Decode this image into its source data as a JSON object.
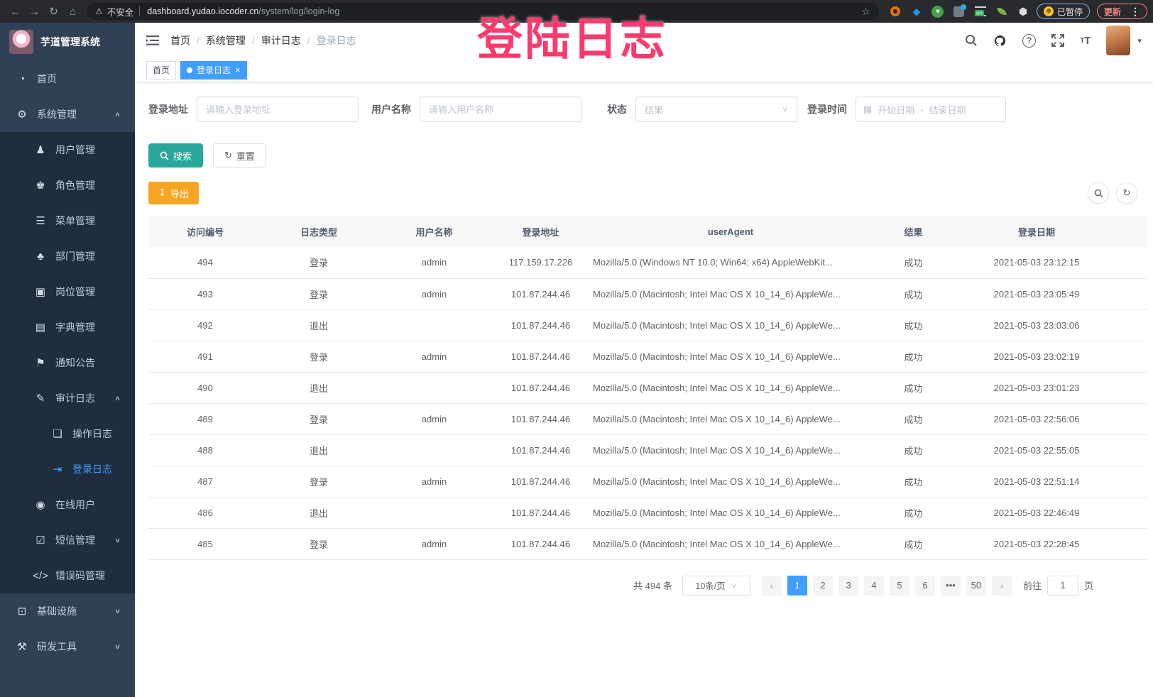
{
  "browser": {
    "security_label": "不安全",
    "url_host": "dashboard.yudao.iocoder.cn",
    "url_path": "/system/log/login-log",
    "paused_badge_label": "已暂停",
    "update_button_label": "更新"
  },
  "overlay_title": "登陆日志",
  "sidebar": {
    "app_title": "芋道管理系统",
    "items": [
      {
        "key": "home",
        "label": "首页",
        "icon": "dashboard-icon",
        "level": 1
      },
      {
        "key": "system",
        "label": "系统管理",
        "icon": "gear-icon",
        "level": 1,
        "arrow": "up"
      },
      {
        "key": "users",
        "label": "用户管理",
        "icon": "user-icon",
        "level": 2
      },
      {
        "key": "roles",
        "label": "角色管理",
        "icon": "role-icon",
        "level": 2
      },
      {
        "key": "menus",
        "label": "菜单管理",
        "icon": "menu-list-icon",
        "level": 2
      },
      {
        "key": "departments",
        "label": "部门管理",
        "icon": "org-tree-icon",
        "level": 2
      },
      {
        "key": "posts",
        "label": "岗位管理",
        "icon": "badge-icon",
        "level": 2
      },
      {
        "key": "dictionaries",
        "label": "字典管理",
        "icon": "dictionary-icon",
        "level": 2
      },
      {
        "key": "announcements",
        "label": "通知公告",
        "icon": "announcement-icon",
        "level": 2
      },
      {
        "key": "audit-log",
        "label": "审计日志",
        "icon": "audit-pencil-icon",
        "level": 2,
        "arrow": "up"
      },
      {
        "key": "operation-log",
        "label": "操作日志",
        "icon": "operation-log-icon",
        "level": 3
      },
      {
        "key": "login-log",
        "label": "登录日志",
        "icon": "login-log-icon",
        "level": 3,
        "active": true
      },
      {
        "key": "online-users",
        "label": "在线用户",
        "icon": "online-users-icon",
        "level": 2
      },
      {
        "key": "sms",
        "label": "短信管理",
        "icon": "shield-check-icon",
        "level": 2,
        "arrow": "down"
      },
      {
        "key": "error-codes",
        "label": "错误码管理",
        "icon": "code-icon",
        "level": 2
      },
      {
        "key": "infrastructure",
        "label": "基础设施",
        "icon": "infrastructure-icon",
        "level": 1,
        "arrow": "down"
      },
      {
        "key": "dev-tools",
        "label": "研发工具",
        "icon": "tools-icon",
        "level": 1,
        "arrow": "down"
      }
    ]
  },
  "navbar": {
    "breadcrumb": [
      "首页",
      "系统管理",
      "审计日志",
      "登录日志"
    ]
  },
  "tabs": [
    {
      "label": "首页",
      "active": false,
      "closable": false
    },
    {
      "label": "登录日志",
      "active": true,
      "closable": true
    }
  ],
  "filters": {
    "address_label": "登录地址",
    "address_placeholder": "请输入登录地址",
    "username_label": "用户名称",
    "username_placeholder": "请输入用户名称",
    "status_label": "状态",
    "status_placeholder": "结果",
    "time_label": "登录时间",
    "time_start_placeholder": "开始日期",
    "time_separator": "-",
    "time_end_placeholder": "结束日期",
    "search_label": "搜索",
    "reset_label": "重置"
  },
  "toolbar": {
    "export_label": "导出"
  },
  "table": {
    "columns": [
      "访问编号",
      "日志类型",
      "用户名称",
      "登录地址",
      "userAgent",
      "结果",
      "登录日期"
    ],
    "rows": [
      [
        "494",
        "登录",
        "admin",
        "117.159.17.226",
        "Mozilla/5.0 (Windows NT 10.0; Win64; x64) AppleWebKit...",
        "成功",
        "2021-05-03 23:12:15"
      ],
      [
        "493",
        "登录",
        "admin",
        "101.87.244.46",
        "Mozilla/5.0 (Macintosh; Intel Mac OS X 10_14_6) AppleWe...",
        "成功",
        "2021-05-03 23:05:49"
      ],
      [
        "492",
        "退出",
        "",
        "101.87.244.46",
        "Mozilla/5.0 (Macintosh; Intel Mac OS X 10_14_6) AppleWe...",
        "成功",
        "2021-05-03 23:03:06"
      ],
      [
        "491",
        "登录",
        "admin",
        "101.87.244.46",
        "Mozilla/5.0 (Macintosh; Intel Mac OS X 10_14_6) AppleWe...",
        "成功",
        "2021-05-03 23:02:19"
      ],
      [
        "490",
        "退出",
        "",
        "101.87.244.46",
        "Mozilla/5.0 (Macintosh; Intel Mac OS X 10_14_6) AppleWe...",
        "成功",
        "2021-05-03 23:01:23"
      ],
      [
        "489",
        "登录",
        "admin",
        "101.87.244.46",
        "Mozilla/5.0 (Macintosh; Intel Mac OS X 10_14_6) AppleWe...",
        "成功",
        "2021-05-03 22:56:06"
      ],
      [
        "488",
        "退出",
        "",
        "101.87.244.46",
        "Mozilla/5.0 (Macintosh; Intel Mac OS X 10_14_6) AppleWe...",
        "成功",
        "2021-05-03 22:55:05"
      ],
      [
        "487",
        "登录",
        "admin",
        "101.87.244.46",
        "Mozilla/5.0 (Macintosh; Intel Mac OS X 10_14_6) AppleWe...",
        "成功",
        "2021-05-03 22:51:14"
      ],
      [
        "486",
        "退出",
        "",
        "101.87.244.46",
        "Mozilla/5.0 (Macintosh; Intel Mac OS X 10_14_6) AppleWe...",
        "成功",
        "2021-05-03 22:46:49"
      ],
      [
        "485",
        "登录",
        "admin",
        "101.87.244.46",
        "Mozilla/5.0 (Macintosh; Intel Mac OS X 10_14_6) AppleWe...",
        "成功",
        "2021-05-03 22:28:45"
      ]
    ]
  },
  "pagination": {
    "total_label": "共 494 条",
    "page_size": "10条/页",
    "pages": [
      "1",
      "2",
      "3",
      "4",
      "5",
      "6",
      "•••",
      "50"
    ],
    "active_page": "1",
    "goto_label": "前往",
    "goto_value": "1",
    "goto_suffix": "页"
  },
  "colors": {
    "accent": "#409EFF",
    "sidebar_bg": "#304156",
    "submenu_bg": "#1F2D3D",
    "search_button": "#2AA79B",
    "export_button": "#F6A623",
    "overlay_text": "#FB3A6E"
  }
}
